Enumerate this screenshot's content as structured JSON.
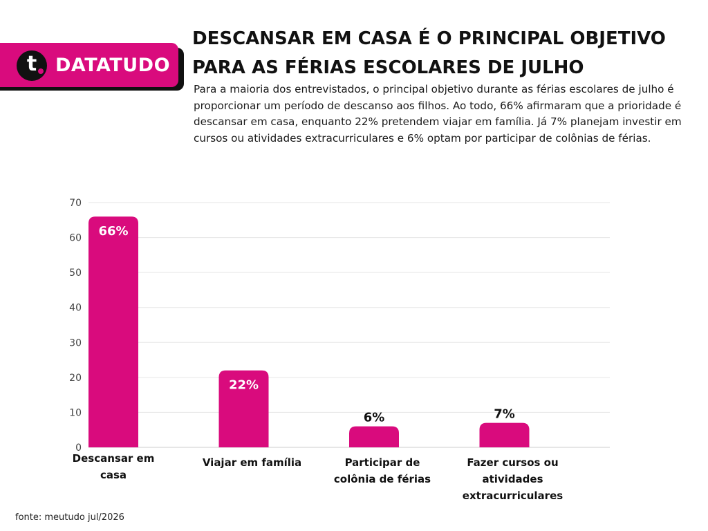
{
  "brand": {
    "logo_letter": "t",
    "name": "DATATUDO",
    "color": "#d90b7d"
  },
  "title": "DESCANSAR EM CASA É O PRINCIPAL OBJETIVO PARA AS FÉRIAS ESCOLARES DE JULHO",
  "subtitle": "Para a maioria dos entrevistados, o principal objetivo durante as férias escolares de julho é proporcionar um período de descanso aos filhos. Ao todo, 66% afirmaram que a prioridade é descansar em casa, enquanto 22% pretendem viajar em família. Já 7% planejam investir em cursos ou atividades extracurriculares e 6% optam por participar de colônias de férias.",
  "source": "fonte: meutudo jul/2026",
  "chart_data": {
    "type": "bar",
    "title": "",
    "xlabel": "",
    "ylabel": "",
    "categories": [
      [
        "Descansar em",
        "casa"
      ],
      [
        "Viajar em família"
      ],
      [
        "Participar de",
        "colônia de férias"
      ],
      [
        "Fazer cursos ou",
        "atividades",
        "extracurriculares"
      ]
    ],
    "values": [
      66,
      22,
      6,
      7
    ],
    "value_labels": [
      "66%",
      "22%",
      "6%",
      "7%"
    ],
    "ylim": [
      0,
      70
    ],
    "yticks": [
      0,
      10,
      20,
      30,
      40,
      50,
      60,
      70
    ],
    "grid": true,
    "legend": "none",
    "bar_color": "#d90b7d"
  }
}
